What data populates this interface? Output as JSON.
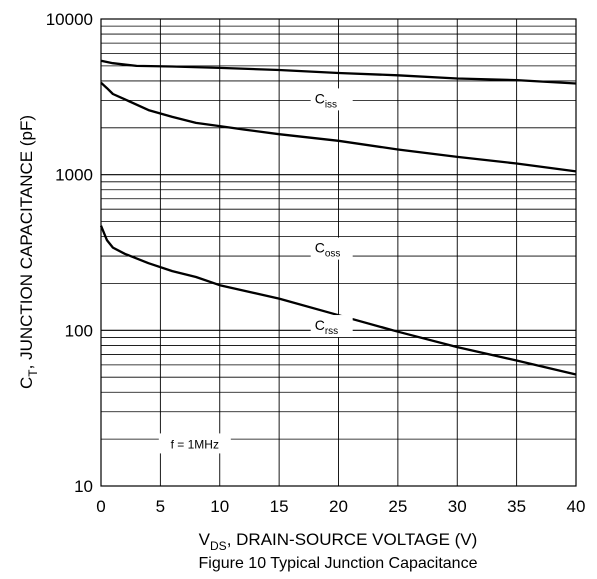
{
  "chart_data": {
    "type": "line",
    "caption": "Figure 10 Typical Junction Capacitance",
    "xlabel": {
      "main": "V",
      "sub": "DS",
      "rest": ", DRAIN-SOURCE VOLTAGE (V)"
    },
    "ylabel": {
      "main": "C",
      "sub": "T",
      "rest": ", JUNCTION CAPACITANCE (pF)"
    },
    "xlim": [
      0,
      40
    ],
    "ylim": [
      10,
      10000
    ],
    "yscale": "log",
    "grid": true,
    "x_ticks": [
      "0",
      "5",
      "10",
      "15",
      "20",
      "25",
      "30",
      "35",
      "40"
    ],
    "y_ticks": [
      "10",
      "100",
      "1000",
      "10000"
    ],
    "series": [
      {
        "name": "C",
        "name_sub": "iss",
        "x": [
          0,
          1,
          3,
          6,
          10,
          15,
          20,
          25,
          30,
          35,
          40
        ],
        "y": [
          5400,
          5200,
          5000,
          4950,
          4850,
          4700,
          4500,
          4350,
          4150,
          4050,
          3850
        ]
      },
      {
        "name": "C",
        "name_sub": "oss",
        "x": [
          0,
          0.5,
          1,
          2,
          4,
          6,
          8,
          10,
          12,
          15,
          20,
          25,
          30,
          35,
          40
        ],
        "y": [
          3900,
          3600,
          3300,
          3050,
          2600,
          2350,
          2150,
          2050,
          1950,
          1820,
          1650,
          1450,
          1300,
          1180,
          1050
        ]
      },
      {
        "name": "C",
        "name_sub": "rss",
        "x": [
          0,
          0.5,
          1,
          2,
          4,
          6,
          8,
          10,
          15,
          20,
          25,
          30,
          35,
          40
        ],
        "y": [
          470,
          380,
          340,
          310,
          270,
          240,
          220,
          195,
          160,
          125,
          98,
          78,
          64,
          52
        ]
      }
    ],
    "annotations": [
      {
        "text": "f = 1MHz"
      }
    ]
  }
}
